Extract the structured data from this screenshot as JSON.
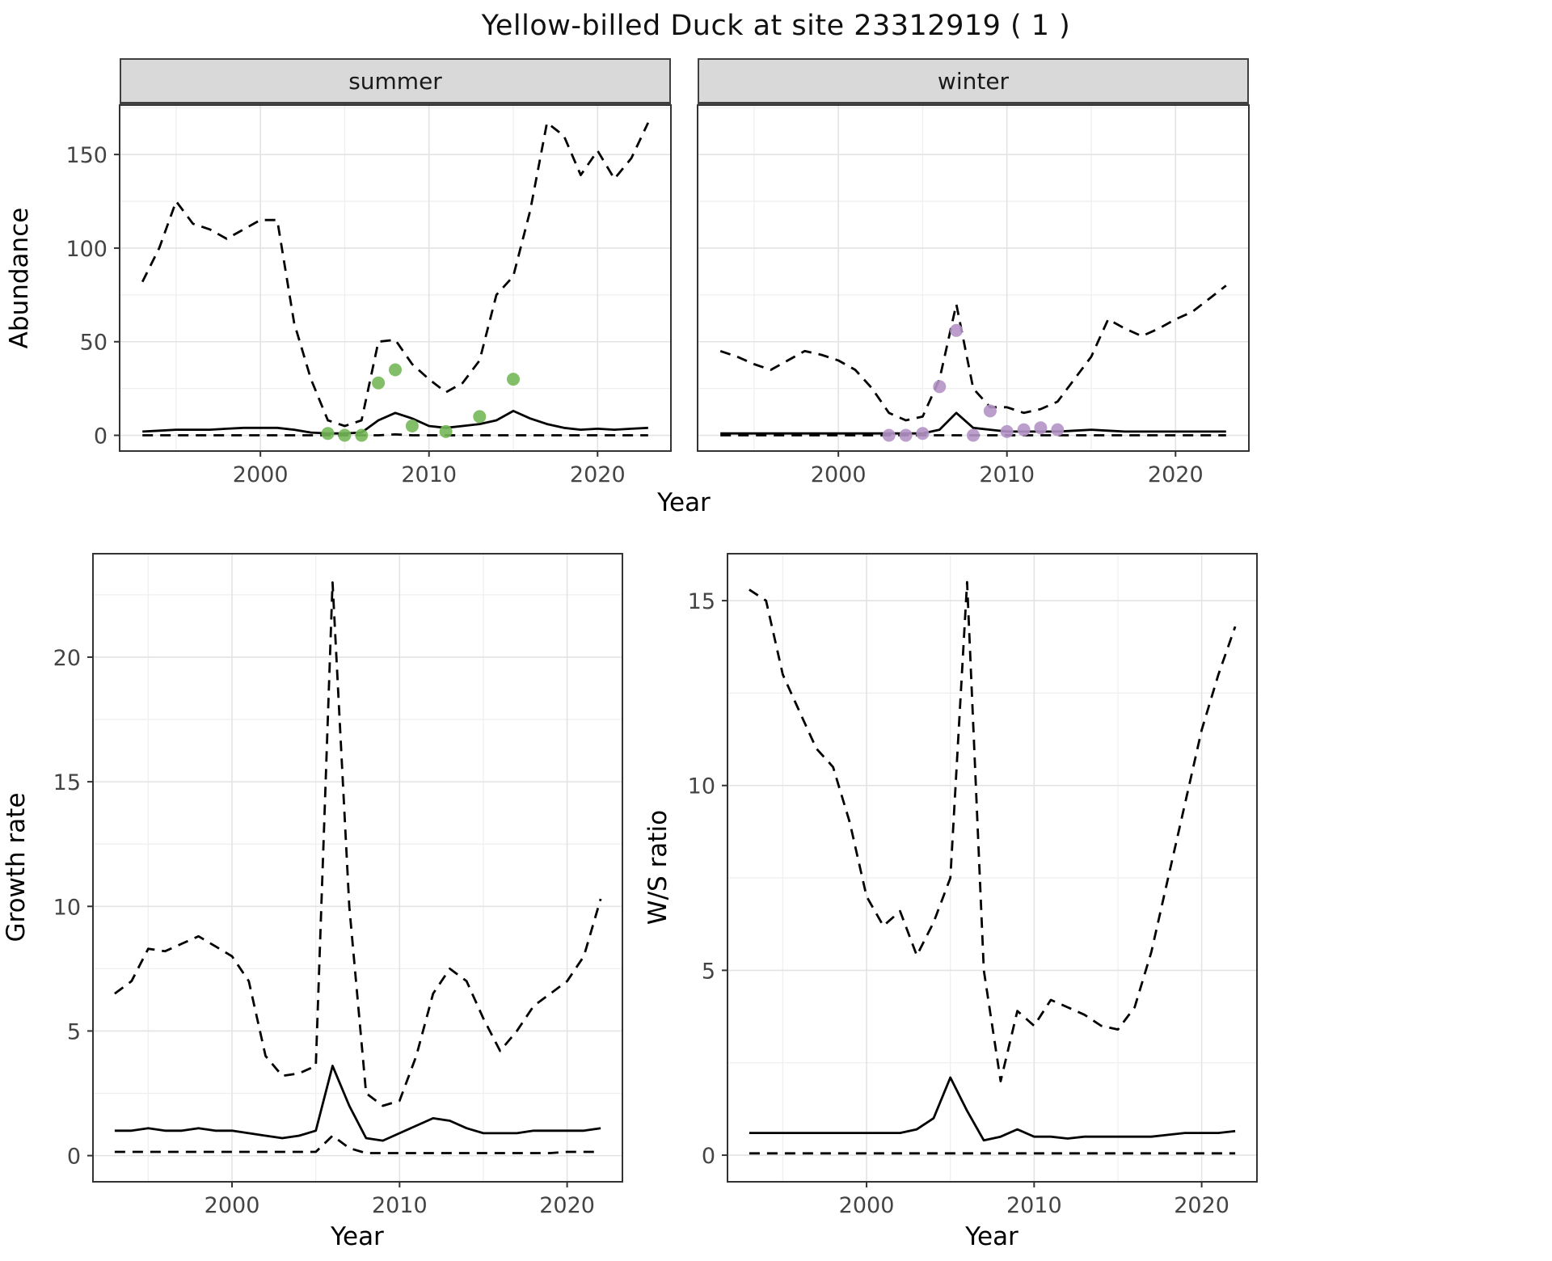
{
  "title": "Yellow-billed Duck at site 23312919 ( 1 )",
  "colors": {
    "line": "#000000",
    "summer_points": "#74b858",
    "winter_points": "#b494c6",
    "strip_bg": "#d9d9d9",
    "grid_major": "#e3e3e3",
    "grid_minor": "#efefef",
    "panel_border": "#333333",
    "tick_label": "#444444"
  },
  "chart_data": {
    "abundance": {
      "type": "line",
      "ylabel": "Abundance",
      "xlabel": "Year",
      "xlim": [
        1991.65,
        2024.35
      ],
      "ylim": [
        -8.4,
        176.4
      ],
      "xticks": [
        2000,
        2010,
        2020
      ],
      "yticks": [
        0,
        50,
        100,
        150
      ],
      "grid": true,
      "legend": "none",
      "years": [
        1993,
        1994,
        1995,
        1996,
        1997,
        1998,
        1999,
        2000,
        2001,
        2002,
        2003,
        2004,
        2005,
        2006,
        2007,
        2008,
        2009,
        2010,
        2011,
        2012,
        2013,
        2014,
        2015,
        2016,
        2017,
        2018,
        2019,
        2020,
        2021,
        2022,
        2023
      ],
      "facets": [
        {
          "label": "summer",
          "point_color": "#74b858",
          "upper_ci": [
            82,
            100,
            125,
            113,
            110,
            105,
            110,
            115,
            115,
            60,
            30,
            8,
            5,
            8,
            50,
            51,
            38,
            30,
            23,
            28,
            40,
            75,
            85,
            120,
            167,
            160,
            139,
            152,
            137,
            148,
            167
          ],
          "median": [
            2,
            2.5,
            3,
            3,
            3,
            3.5,
            4,
            4,
            4,
            3,
            1.5,
            1,
            1,
            1.5,
            8,
            12,
            9,
            5,
            4,
            5,
            6,
            8,
            13,
            9,
            6,
            4,
            3,
            3.5,
            3,
            3.5,
            4
          ],
          "lower_ci": [
            0,
            0,
            0,
            0,
            0,
            0,
            0,
            0,
            0,
            0,
            0,
            0,
            0,
            0,
            0,
            0.5,
            0,
            0,
            0,
            0,
            0,
            0,
            0,
            0,
            0,
            0,
            0,
            0,
            0,
            0,
            0
          ],
          "observations": {
            "years": [
              2004,
              2005,
              2006,
              2007,
              2008,
              2009,
              2011,
              2013,
              2015
            ],
            "values": [
              1,
              0,
              0,
              28,
              35,
              5,
              2,
              10,
              30
            ]
          }
        },
        {
          "label": "winter",
          "point_color": "#b494c6",
          "upper_ci": [
            45,
            42,
            38,
            35,
            40,
            45,
            43,
            40,
            35,
            25,
            12,
            8,
            10,
            30,
            70,
            25,
            15,
            15,
            12,
            14,
            18,
            30,
            42,
            62,
            57,
            53,
            57,
            62,
            66,
            73,
            80
          ],
          "median": [
            1,
            1,
            1,
            1,
            1,
            1,
            1,
            1,
            1,
            1,
            1,
            1,
            1,
            3,
            12,
            4,
            3,
            2,
            2,
            2,
            2,
            2.5,
            3,
            2.5,
            2,
            2,
            2,
            2,
            2,
            2,
            2
          ],
          "lower_ci": [
            0,
            0,
            0,
            0,
            0,
            0,
            0,
            0,
            0,
            0,
            0,
            0,
            0,
            0,
            0,
            0,
            0,
            0,
            0,
            0,
            0,
            0,
            0,
            0,
            0,
            0,
            0,
            0,
            0,
            0,
            0
          ],
          "observations": {
            "years": [
              2003,
              2004,
              2005,
              2006,
              2007,
              2008,
              2009,
              2010,
              2011,
              2012,
              2013
            ],
            "values": [
              0,
              0,
              1,
              26,
              56,
              0,
              13,
              2,
              3,
              4,
              3
            ]
          }
        }
      ]
    },
    "growth_rate": {
      "type": "line",
      "ylabel": "Growth rate",
      "xlabel": "Year",
      "xlim": [
        1991.7,
        2023.3
      ],
      "ylim": [
        -1.05,
        24.15
      ],
      "xticks": [
        2000,
        2010,
        2020
      ],
      "yticks": [
        0,
        5,
        10,
        15,
        20
      ],
      "grid": true,
      "legend": "none",
      "years": [
        1993,
        1994,
        1995,
        1996,
        1997,
        1998,
        1999,
        2000,
        2001,
        2002,
        2003,
        2004,
        2005,
        2006,
        2007,
        2008,
        2009,
        2010,
        2011,
        2012,
        2013,
        2014,
        2015,
        2016,
        2017,
        2018,
        2019,
        2020,
        2021,
        2022
      ],
      "upper_ci": [
        6.5,
        7,
        8.3,
        8.2,
        8.5,
        8.8,
        8.4,
        8,
        7,
        4,
        3.2,
        3.3,
        3.6,
        23,
        10,
        2.5,
        2,
        2.2,
        4,
        6.5,
        7.5,
        7,
        5.5,
        4.2,
        5,
        6,
        6.5,
        7,
        8,
        10.3
      ],
      "median": [
        1,
        1,
        1.1,
        1,
        1,
        1.1,
        1,
        1,
        0.9,
        0.8,
        0.7,
        0.8,
        1,
        3.6,
        2,
        0.7,
        0.6,
        0.9,
        1.2,
        1.5,
        1.4,
        1.1,
        0.9,
        0.9,
        0.9,
        1,
        1,
        1,
        1,
        1.1
      ],
      "lower_ci": [
        0.15,
        0.15,
        0.15,
        0.15,
        0.15,
        0.15,
        0.15,
        0.15,
        0.15,
        0.15,
        0.15,
        0.15,
        0.15,
        0.8,
        0.3,
        0.1,
        0.1,
        0.1,
        0.1,
        0.1,
        0.1,
        0.1,
        0.1,
        0.1,
        0.1,
        0.1,
        0.1,
        0.15,
        0.15,
        0.15
      ]
    },
    "ws_ratio": {
      "type": "line",
      "ylabel": "W/S ratio",
      "xlabel": "Year",
      "xlim": [
        1991.7,
        2023.3
      ],
      "ylim": [
        -0.72,
        16.27
      ],
      "xticks": [
        2000,
        2010,
        2020
      ],
      "yticks": [
        0,
        5,
        10,
        15
      ],
      "grid": true,
      "legend": "none",
      "years": [
        1993,
        1994,
        1995,
        1996,
        1997,
        1998,
        1999,
        2000,
        2001,
        2002,
        2003,
        2004,
        2005,
        2006,
        2007,
        2008,
        2009,
        2010,
        2011,
        2012,
        2013,
        2014,
        2015,
        2016,
        2017,
        2018,
        2019,
        2020,
        2021,
        2022
      ],
      "upper_ci": [
        15.3,
        15,
        13,
        12,
        11,
        10.5,
        9,
        7,
        6.2,
        6.6,
        5.4,
        6.3,
        7.5,
        15.5,
        5,
        2,
        3.9,
        3.5,
        4.2,
        4,
        3.8,
        3.5,
        3.4,
        4,
        5.5,
        7.5,
        9.5,
        11.5,
        13,
        14.3
      ],
      "median": [
        0.6,
        0.6,
        0.6,
        0.6,
        0.6,
        0.6,
        0.6,
        0.6,
        0.6,
        0.6,
        0.7,
        1,
        2.1,
        1.2,
        0.4,
        0.5,
        0.7,
        0.5,
        0.5,
        0.45,
        0.5,
        0.5,
        0.5,
        0.5,
        0.5,
        0.55,
        0.6,
        0.6,
        0.6,
        0.65
      ],
      "lower_ci": [
        0.05,
        0.05,
        0.05,
        0.05,
        0.05,
        0.05,
        0.05,
        0.05,
        0.05,
        0.05,
        0.05,
        0.05,
        0.05,
        0.05,
        0.05,
        0.05,
        0.05,
        0.05,
        0.05,
        0.05,
        0.05,
        0.05,
        0.05,
        0.05,
        0.05,
        0.05,
        0.05,
        0.05,
        0.05,
        0.05
      ]
    }
  }
}
